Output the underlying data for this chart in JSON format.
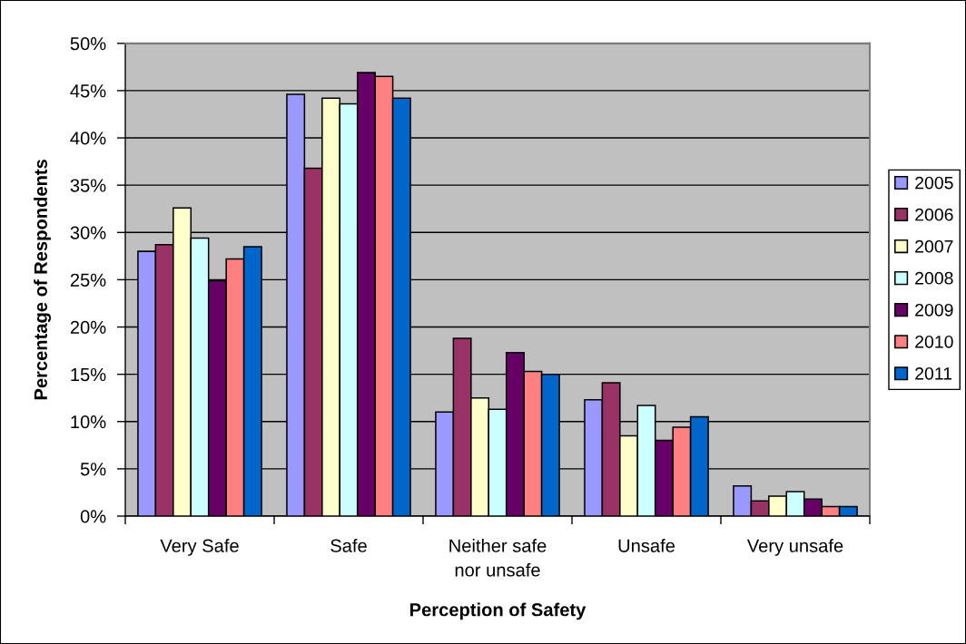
{
  "chart_data": {
    "type": "bar",
    "xlabel": "Perception of Safety",
    "ylabel": "Percentage of Respondents",
    "categories": [
      "Very Safe",
      "Safe",
      "Neither safe\nnor unsafe",
      "Unsafe",
      "Very unsafe"
    ],
    "series": [
      {
        "name": "2005",
        "color": "#9999ff",
        "values": [
          28.0,
          44.6,
          11.0,
          12.3,
          3.2
        ]
      },
      {
        "name": "2006",
        "color": "#993366",
        "values": [
          28.7,
          36.8,
          18.8,
          14.1,
          1.6
        ]
      },
      {
        "name": "2007",
        "color": "#ffffcc",
        "values": [
          32.6,
          44.2,
          12.5,
          8.5,
          2.1
        ]
      },
      {
        "name": "2008",
        "color": "#ccffff",
        "values": [
          29.4,
          43.6,
          11.3,
          11.7,
          2.6
        ]
      },
      {
        "name": "2009",
        "color": "#660066",
        "values": [
          24.9,
          46.9,
          17.3,
          8.0,
          1.8
        ]
      },
      {
        "name": "2010",
        "color": "#ff8080",
        "values": [
          27.2,
          46.5,
          15.3,
          9.4,
          1.0
        ]
      },
      {
        "name": "2011",
        "color": "#0066cc",
        "values": [
          28.5,
          44.2,
          15.0,
          10.5,
          1.0
        ]
      }
    ],
    "ylim": [
      0,
      50
    ],
    "yticks": [
      {
        "value": 0,
        "label": "0%"
      },
      {
        "value": 5,
        "label": "5%"
      },
      {
        "value": 10,
        "label": "10%"
      },
      {
        "value": 15,
        "label": "15%"
      },
      {
        "value": 20,
        "label": "20%"
      },
      {
        "value": 25,
        "label": "25%"
      },
      {
        "value": 30,
        "label": "30%"
      },
      {
        "value": 35,
        "label": "35%"
      },
      {
        "value": 40,
        "label": "40%"
      },
      {
        "value": 45,
        "label": "45%"
      },
      {
        "value": 50,
        "label": "50%"
      }
    ],
    "grid": "y",
    "legend": "right"
  }
}
